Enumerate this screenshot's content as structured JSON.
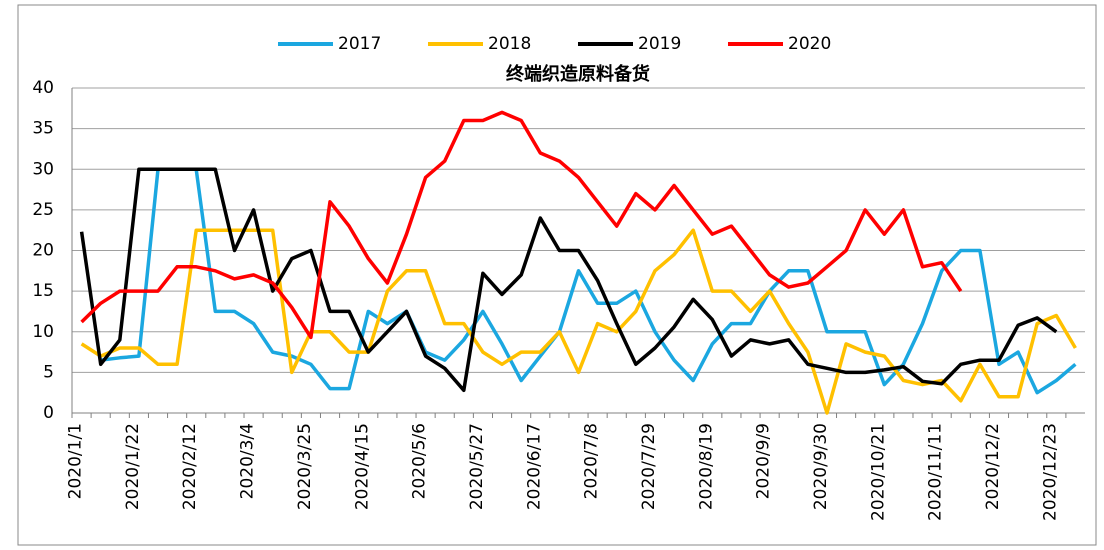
{
  "chart_data": {
    "type": "line",
    "title": "终端织造原料备货",
    "categories": [
      "2020/1/1",
      null,
      null,
      "2020/1/22",
      null,
      null,
      "2020/2/12",
      null,
      null,
      "2020/3/4",
      null,
      null,
      "2020/3/25",
      null,
      null,
      "2020/4/15",
      null,
      null,
      "2020/5/6",
      null,
      null,
      "2020/5/27",
      null,
      null,
      "2020/6/17",
      null,
      null,
      "2020/7/8",
      null,
      null,
      "2020/7/29",
      null,
      null,
      "2020/8/19",
      null,
      null,
      "2020/9/9",
      null,
      null,
      "2020/9/30",
      null,
      null,
      "2020/10/21",
      null,
      null,
      "2020/11/11",
      null,
      null,
      "2020/12/2",
      null,
      null,
      "2020/12/23",
      null
    ],
    "series": [
      {
        "name": "2017",
        "color": "#1ba7e0",
        "values": [
          null,
          6.5,
          6.8,
          7,
          30,
          30,
          30,
          12.5,
          12.5,
          11,
          7.5,
          7,
          6,
          3,
          3,
          12.5,
          11,
          12.5,
          7.5,
          6.5,
          9,
          12.5,
          8.5,
          4,
          7,
          10,
          17.5,
          13.5,
          13.5,
          15,
          10,
          6.5,
          4,
          8.5,
          11,
          11,
          15,
          17.5,
          17.5,
          10,
          10,
          10,
          3.5,
          6,
          11,
          17.5,
          20,
          20,
          6,
          7.5,
          2.5,
          4,
          6
        ]
      },
      {
        "name": "2018",
        "color": "#ffc000",
        "values": [
          8.5,
          7,
          8,
          8,
          6,
          6,
          22.5,
          22.5,
          22.5,
          22.5,
          22.5,
          5,
          10,
          10,
          7.5,
          7.5,
          15,
          17.5,
          17.5,
          11,
          11,
          7.5,
          6,
          7.5,
          7.5,
          10,
          5,
          11,
          10,
          12.5,
          17.5,
          19.5,
          22.5,
          15,
          15,
          12.5,
          15,
          11,
          7.5,
          0,
          8.5,
          7.5,
          7,
          4,
          3.5,
          4,
          1.5,
          6,
          2,
          2,
          11,
          12,
          8
        ]
      },
      {
        "name": "2019",
        "color": "#000000",
        "values": [
          22.3,
          6,
          9,
          30,
          30,
          30,
          30,
          30,
          20,
          25,
          15,
          19,
          20,
          12.5,
          12.5,
          7.5,
          10,
          12.5,
          7,
          5.5,
          2.8,
          17.2,
          14.6,
          17,
          24,
          20,
          20,
          16.3,
          11,
          6,
          8,
          10.6,
          14,
          11.5,
          7,
          9,
          8.5,
          9,
          6,
          5.5,
          5,
          5,
          5.3,
          5.7,
          3.9,
          3.6,
          6,
          6.5,
          6.5,
          10.8,
          11.7,
          10,
          null
        ]
      },
      {
        "name": "2020",
        "color": "#ff0000",
        "values": [
          11.2,
          13.5,
          15,
          15,
          15,
          18,
          18,
          17.5,
          16.5,
          17,
          16,
          13,
          9.3,
          26,
          23,
          19,
          16,
          22,
          29,
          31,
          36,
          36,
          37,
          36,
          32,
          31,
          29,
          26,
          23,
          27,
          25,
          28,
          25,
          22,
          23,
          20,
          17,
          15.5,
          16,
          18,
          20,
          25,
          22,
          25,
          18,
          18.5,
          15,
          null,
          null,
          null,
          null,
          null,
          null
        ]
      }
    ],
    "ylim": [
      0,
      40
    ],
    "yticks": [
      0,
      5,
      10,
      15,
      20,
      25,
      30,
      35,
      40
    ],
    "grid": true,
    "legend": "top"
  }
}
